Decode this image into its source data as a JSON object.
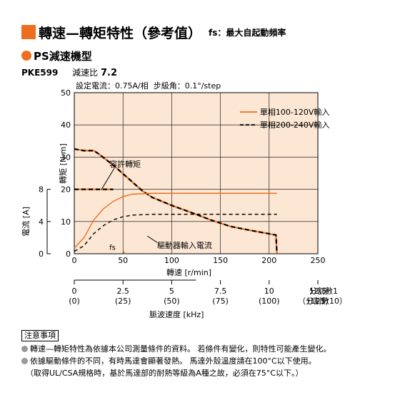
{
  "header": {
    "title": "轉速—轉矩特性（參考值）",
    "fs_note": "fs：最大自起動頻率"
  },
  "section": {
    "title": "PS減速機型",
    "model": "PKE599",
    "ratio_label": "減速比",
    "ratio_value": "7.2"
  },
  "settings": {
    "current": "設定電流：0.75A/相",
    "step": "步級角：0.1°/step"
  },
  "colors": {
    "plot_bg": "#fce6d4",
    "accent": "#ee6e1f",
    "grid": "#000000",
    "dashed": "#000000"
  },
  "notes": {
    "heading": "注意事項",
    "lines": [
      "轉速—轉矩特性為依據本公司測量條件的資料。 若條件有變化，則特性可能產生變化。",
      "依據驅動條件的不同，有時馬達會顯著發熱。 馬達外殼溫度請在100°C以下使用。",
      "（取得UL/CSA規格時，基於馬達部的耐熱等級為A種之故，必須在75°C以下。）"
    ]
  },
  "chart_data": {
    "type": "line",
    "xlabel": "轉速",
    "xunit": "[r/min]",
    "xlim": [
      0,
      250
    ],
    "xticks": [
      0,
      50,
      100,
      150,
      200,
      250
    ],
    "ylabel": "轉矩",
    "yunit": "[N·m]",
    "ylim": [
      0,
      50
    ],
    "yticks": [
      0,
      10,
      20,
      30,
      40,
      50
    ],
    "y2label": "電流",
    "y2unit": "[A]",
    "y2lim": [
      0,
      8
    ],
    "y2ticks": [
      0,
      4,
      8
    ],
    "freq_axis": {
      "label": "脈波速度",
      "unit": "[kHz]",
      "ticks": [
        "0",
        "2.5",
        "5",
        "7.5",
        "10",
        "12.5"
      ],
      "ticks_sub": [
        "(0)",
        "(25)",
        "(50)",
        "(75)",
        "(100)",
        "(125)"
      ],
      "ticks_rpm": [
        0,
        25,
        50,
        75,
        100,
        125
      ],
      "side_label": "分割數1",
      "side_label_sub": "（分割數10）"
    },
    "grid": true,
    "legend_position": "top-right",
    "series": [
      {
        "name": "單相100-120V輸入",
        "style": "solid",
        "color": "#ee6e1f",
        "torque": {
          "x": [
            0,
            10,
            20,
            25,
            40,
            55,
            70,
            80,
            100,
            120,
            140,
            160,
            180,
            200,
            207,
            208
          ],
          "y": [
            32.5,
            32,
            32,
            31,
            27.5,
            23.5,
            19.5,
            17.5,
            15,
            12.8,
            10.5,
            8.5,
            7.3,
            6.2,
            5.8,
            0
          ]
        },
        "current": {
          "x": [
            0,
            10,
            20,
            30,
            40,
            50,
            60,
            80,
            120,
            160,
            200,
            208
          ],
          "y": [
            0.7,
            2,
            4.2,
            5.6,
            6.5,
            7.1,
            7.4,
            7.5,
            7.5,
            7.5,
            7.5,
            7.5
          ]
        }
      },
      {
        "name": "單相200-240V輸入",
        "style": "dashed",
        "color": "#000000",
        "torque": {
          "x": [
            0,
            10,
            20,
            25,
            40,
            55,
            70,
            80,
            100,
            120,
            140,
            160,
            180,
            200,
            207,
            208
          ],
          "y": [
            32.5,
            32,
            32,
            31,
            27.5,
            23.5,
            19.5,
            17.5,
            15,
            12.8,
            10.5,
            8.5,
            7.3,
            6.2,
            5.8,
            0
          ]
        },
        "current": {
          "x": [
            0,
            10,
            20,
            30,
            40,
            50,
            60,
            80,
            120,
            160,
            200,
            208
          ],
          "y": [
            0.3,
            1,
            2.5,
            3.5,
            4.2,
            4.6,
            4.8,
            4.9,
            4.9,
            4.9,
            4.9,
            4.9
          ]
        }
      }
    ],
    "holding_torque": {
      "x": [
        0,
        40
      ],
      "y": [
        20,
        20
      ]
    },
    "fs_curve": {
      "x": [
        50,
        52
      ],
      "y": [
        0.8,
        0
      ]
    },
    "annotations": {
      "holding_torque_label": "容許轉矩",
      "current_label": "驅動器輸入電流",
      "fs_label": "fs"
    }
  }
}
